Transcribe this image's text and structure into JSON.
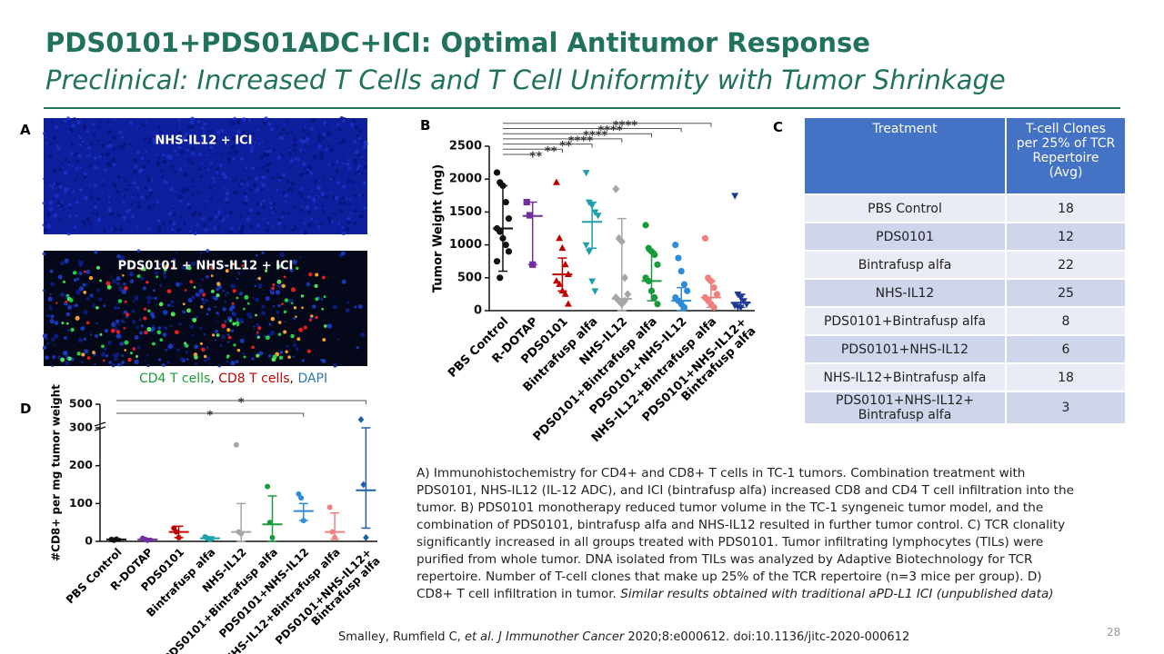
{
  "title": "PDS0101+PDS01ADC+ICI: Optimal Antitumor Response",
  "subtitle": "Preclinical: Increased T Cells and T Cell Uniformity with Tumor Shrinkage",
  "panel_labels": [
    "A",
    "B",
    "C",
    "D"
  ],
  "images": [
    {
      "label": "NHS-IL12  + ICI"
    },
    {
      "label": "PDS0101  + NHS-IL12 + ICI"
    }
  ],
  "image_caption": [
    {
      "text": "CD4 T cells",
      "color": "#1a9a3a"
    },
    {
      "text": ", ",
      "color": "#222222"
    },
    {
      "text": "CD8 T cells",
      "color": "#c00000"
    },
    {
      "text": ", ",
      "color": "#222222"
    },
    {
      "text": "DAPI",
      "color": "#2e75b6"
    }
  ],
  "table": {
    "header": [
      "Treatment",
      "T-cell Clones\nper 25% of TCR\nRepertoire\n(Avg)"
    ],
    "rows": [
      [
        "PBS Control",
        "18"
      ],
      [
        "PDS0101",
        "12"
      ],
      [
        "Bintrafusp alfa",
        "22"
      ],
      [
        "NHS-IL12",
        "25"
      ],
      [
        "PDS0101+Bintrafusp alfa",
        "8"
      ],
      [
        "PDS0101+NHS-IL12",
        "6"
      ],
      [
        "NHS-IL12+Bintrafusp alfa",
        "18"
      ],
      [
        "PDS0101+NHS-IL12+\nBintrafusp alfa",
        "3"
      ]
    ]
  },
  "caption": {
    "lines": [
      "A) Immunohistochemistry for CD4+ and CD8+ T cells in TC-1 tumors. Combination treatment with",
      "PDS0101, NHS-IL12 (IL-12 ADC), and ICI (bintrafusp alfa) increased CD8 and CD4 T cell infiltration into the",
      "tumor.  B) PDS0101 monotherapy reduced tumor volume in the TC-1 syngeneic tumor model, and the",
      "combination of PDS0101, bintrafusp alfa and NHS-IL12 resulted in further tumor control. C) TCR clonality",
      "significantly increased in all groups treated with PDS0101. Tumor infiltrating lymphocytes (TILs) were",
      "purified from whole tumor. DNA isolated from TILs was analyzed by Adaptive Biotechnology for TCR",
      "repertoire. Number of T-cell clones that make up 25% of the TCR repertoire (n=3 mice per group).   D)"
    ],
    "last_line": "CD8+ T cell infiltration in tumor.",
    "italic_note": "Similar results obtained with traditional aPD-L1 ICI (unpublished data)"
  },
  "citation": {
    "authors": "Smalley, Rumfield C,",
    "journal": "et al. J Immunother Cancer",
    "ref": "2020;8:e000612. doi:10.1136/jitc-2020-000612"
  },
  "page_number": "28",
  "chart_data": [
    {
      "type": "dot",
      "y_label": "Tumor Weight (mg)",
      "categories": [
        "PBS Control",
        "R-DOTAP",
        "PDS0101",
        "Bintrafusp alfa",
        "NHS-IL12",
        "PDS0101+Bintrafusp alfa",
        "PDS0101+NHS-IL12",
        "NHS-IL12+Bintrafusp alfa",
        "PDS0101+NHS-IL12+\nBintrafusp alfa"
      ],
      "colors": [
        "#111111",
        "#7030a0",
        "#c00000",
        "#1fa0a8",
        "#a6a6a6",
        "#1a9a3a",
        "#2e8bd8",
        "#f08080",
        "#1f3a93"
      ],
      "markers": [
        "circle",
        "square",
        "triangle",
        "triangle-down",
        "diamond",
        "circle",
        "circle",
        "circle",
        "triangle-down"
      ],
      "points": [
        [
          2100,
          1950,
          1900,
          1650,
          1400,
          1250,
          1200,
          1100,
          1000,
          900,
          750,
          500
        ],
        [
          1650,
          1450,
          700
        ],
        [
          1950,
          1100,
          950,
          700,
          550,
          450,
          400,
          300,
          250,
          100
        ],
        [
          2100,
          1650,
          1600,
          1500,
          1450,
          1000,
          900,
          450,
          300
        ],
        [
          1850,
          1100,
          1050,
          500,
          250,
          200,
          150,
          100,
          150
        ],
        [
          1300,
          950,
          900,
          850,
          700,
          500,
          450,
          300,
          200,
          100
        ],
        [
          1000,
          800,
          600,
          400,
          300,
          200,
          150,
          100,
          50
        ],
        [
          1100,
          500,
          450,
          350,
          250,
          200,
          150,
          100,
          50
        ],
        [
          1750,
          250,
          200,
          150,
          100,
          80,
          60,
          50
        ]
      ],
      "means": [
        1250,
        1440,
        550,
        1350,
        180,
        450,
        150,
        200,
        120
      ],
      "low": [
        600,
        700,
        300,
        950,
        0,
        150,
        0,
        50,
        50
      ],
      "high": [
        1900,
        1650,
        800,
        1650,
        1400,
        900,
        350,
        450,
        250
      ],
      "brackets": [
        {
          "from": 0,
          "to": 1,
          "label": "**"
        },
        {
          "from": 0,
          "to": 2,
          "label": "**"
        },
        {
          "from": 0,
          "to": 3,
          "label": "**"
        },
        {
          "from": 0,
          "to": 4,
          "label": "****"
        },
        {
          "from": 0,
          "to": 5,
          "label": "****"
        },
        {
          "from": 0,
          "to": 6,
          "label": "****"
        },
        {
          "from": 0,
          "to": 7,
          "label": "****"
        }
      ],
      "ylim": [
        0,
        2500
      ],
      "yticks": [
        0,
        500,
        1000,
        1500,
        2000,
        2500
      ]
    },
    {
      "type": "dot",
      "y_label": "#CD8+ per mg tumor weight",
      "categories": [
        "PBS Control",
        "R-DOTAP",
        "PDS0101",
        "Bintrafusp alfa",
        "NHS-IL12",
        "PDS0101+Bintrafusp alfa",
        "PDS0101+NHS-IL12",
        "NHS-IL12+Bintrafusp alfa",
        "PDS0101+NHS-IL12+\nBintrafusp alfa"
      ],
      "colors": [
        "#111111",
        "#7030a0",
        "#c00000",
        "#1fa0a8",
        "#a6a6a6",
        "#1a9a3a",
        "#2e8bd8",
        "#f08080",
        "#1f5fa8"
      ],
      "markers": [
        "circle",
        "circle",
        "circle",
        "circle",
        "circle",
        "circle",
        "circle",
        "circle",
        "diamond"
      ],
      "points": [
        [
          5,
          3,
          6
        ],
        [
          8,
          5,
          3
        ],
        [
          35,
          25,
          10
        ],
        [
          12,
          8,
          5
        ],
        [
          255,
          25,
          20
        ],
        [
          145,
          50,
          10
        ],
        [
          125,
          115,
          55
        ],
        [
          90,
          25,
          10
        ],
        [
          370,
          150,
          10
        ]
      ],
      "means": [
        5,
        5,
        25,
        8,
        25,
        45,
        80,
        25,
        135
      ],
      "low": [
        2,
        2,
        10,
        3,
        0,
        0,
        55,
        5,
        35
      ],
      "high": [
        7,
        8,
        40,
        12,
        100,
        120,
        100,
        75,
        300
      ],
      "brackets": [
        {
          "from": 0,
          "to": 6,
          "label": "*"
        },
        {
          "from": 0,
          "to": 8,
          "label": "*"
        }
      ],
      "ylim": [
        0,
        500
      ],
      "axis_break": [
        300,
        500
      ],
      "yticks": [
        0,
        100,
        200,
        300,
        500
      ]
    }
  ]
}
